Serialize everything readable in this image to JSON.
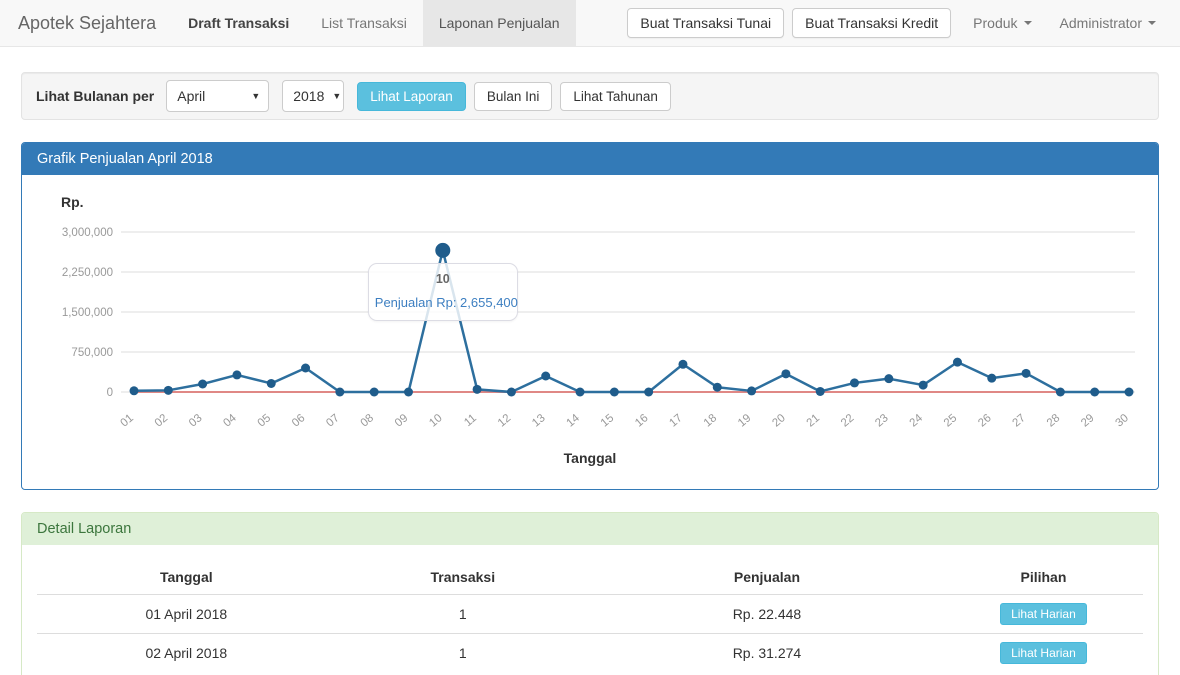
{
  "navbar": {
    "brand": "Apotek Sejahtera",
    "items": [
      {
        "label": "Draft Transaksi",
        "active": false
      },
      {
        "label": "List Transaksi",
        "active": false
      },
      {
        "label": "Laponan Penjualan",
        "active": true
      }
    ],
    "buttons": [
      {
        "label": "Buat Transaksi Tunai"
      },
      {
        "label": "Buat Transaksi Kredit"
      }
    ],
    "dropdowns": [
      {
        "label": "Produk"
      },
      {
        "label": "Administrator"
      }
    ]
  },
  "filter": {
    "label": "Lihat Bulanan per",
    "month_value": "April",
    "year_value": "2018",
    "view_report_label": "Lihat Laporan",
    "this_month_label": "Bulan Ini",
    "yearly_label": "Lihat Tahunan"
  },
  "chart_panel": {
    "title": "Grafik Penjualan April 2018",
    "y_unit": "Rp.",
    "x_axis_title": "Tanggal",
    "tooltip": {
      "title": "10",
      "text": "Penjualan Rp: 2,655,400"
    }
  },
  "chart_data": {
    "type": "line",
    "title": "Grafik Penjualan April 2018",
    "xlabel": "Tanggal",
    "ylabel": "Rp.",
    "x": [
      "01",
      "02",
      "03",
      "04",
      "05",
      "06",
      "07",
      "08",
      "09",
      "10",
      "11",
      "12",
      "13",
      "14",
      "15",
      "16",
      "17",
      "18",
      "19",
      "20",
      "21",
      "22",
      "23",
      "24",
      "25",
      "26",
      "27",
      "28",
      "29",
      "30"
    ],
    "series": [
      {
        "name": "Penjualan",
        "color": "#2d6f9e",
        "values": [
          22448,
          31274,
          150000,
          320000,
          160000,
          450000,
          0,
          0,
          0,
          2655400,
          50000,
          0,
          300000,
          0,
          0,
          0,
          520000,
          90000,
          20000,
          340000,
          10000,
          170000,
          250000,
          130000,
          560000,
          260000,
          350000,
          0,
          0,
          0
        ]
      },
      {
        "name": "zero-baseline",
        "color": "#e08885",
        "values": [
          0,
          0,
          0,
          0,
          0,
          0,
          0,
          0,
          0,
          0,
          0,
          0,
          0,
          0,
          0,
          0,
          0,
          0,
          0,
          0,
          0,
          0,
          0,
          0,
          0,
          0,
          0,
          0,
          0,
          0
        ]
      }
    ],
    "ylim": [
      0,
      3000000
    ],
    "yticks": [
      0,
      750000,
      1500000,
      2250000,
      3000000
    ],
    "grid": true,
    "legend": "none",
    "highlight": {
      "index": 9,
      "x": "10",
      "value": 2655400
    }
  },
  "detail_panel": {
    "title": "Detail Laporan",
    "table": {
      "headers": [
        "Tanggal",
        "Transaksi",
        "Penjualan",
        "Pilihan"
      ],
      "rows": [
        {
          "tanggal": "01 April 2018",
          "transaksi": "1",
          "penjualan": "Rp. 22.448",
          "action": "Lihat Harian"
        },
        {
          "tanggal": "02 April 2018",
          "transaksi": "1",
          "penjualan": "Rp. 31.274",
          "action": "Lihat Harian"
        }
      ]
    }
  },
  "colors": {
    "navbar_bg": "#f8f8f8",
    "active_tab_bg": "#e7e7e7",
    "info_button": "#5bc0de",
    "panel_primary": "#337ab7",
    "panel_success_bg": "#dff0d8",
    "panel_success_text": "#3c763d",
    "line": "#2d6f9e",
    "point": "#1f5c8b",
    "zero_line": "#e08885",
    "gridline": "#dddddd",
    "tick_text": "#999999",
    "tooltip_text": "#3d7fc1"
  }
}
